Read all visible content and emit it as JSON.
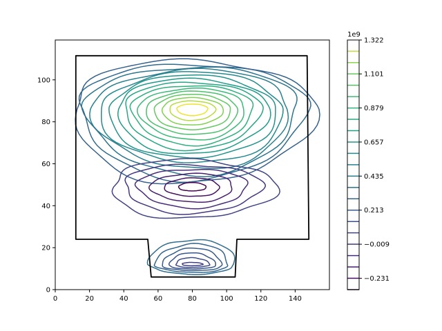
{
  "chart_data": {
    "type": "contour",
    "title": "",
    "xlabel": "",
    "ylabel": "",
    "xlim": [
      0,
      160
    ],
    "ylim": [
      0,
      119
    ],
    "x_ticks": [
      0,
      20,
      40,
      60,
      80,
      100,
      120,
      140
    ],
    "y_ticks": [
      0,
      20,
      40,
      60,
      80,
      100
    ],
    "grid": false,
    "colormap": "viridis",
    "colorbar": {
      "offset_label": "1e9",
      "range": [
        -0.305,
        1.322
      ],
      "tick_values": [
        1.322,
        1.101,
        0.879,
        0.657,
        0.435,
        0.213,
        -0.009,
        -0.231
      ],
      "tick_labels": [
        "1.322",
        "1.101",
        "0.879",
        "0.657",
        "0.435",
        "0.213",
        "−0.009",
        "−0.231"
      ],
      "level_step": 0.074,
      "level_count": 22
    },
    "boundary": {
      "color": "#000000",
      "outer_polyline": [
        [
          12,
          111.5
        ],
        [
          147,
          111.5
        ],
        [
          148,
          24
        ],
        [
          106,
          24
        ],
        [
          105,
          6
        ],
        [
          56,
          6
        ],
        [
          54,
          24
        ],
        [
          12,
          24
        ]
      ]
    },
    "contours": {
      "upper_center": [
        80,
        86
      ],
      "upper_peak_value": 1.3,
      "lower_center": [
        80,
        49
      ],
      "lower_trough_value": -0.3,
      "channel_center": [
        80,
        12
      ]
    }
  }
}
